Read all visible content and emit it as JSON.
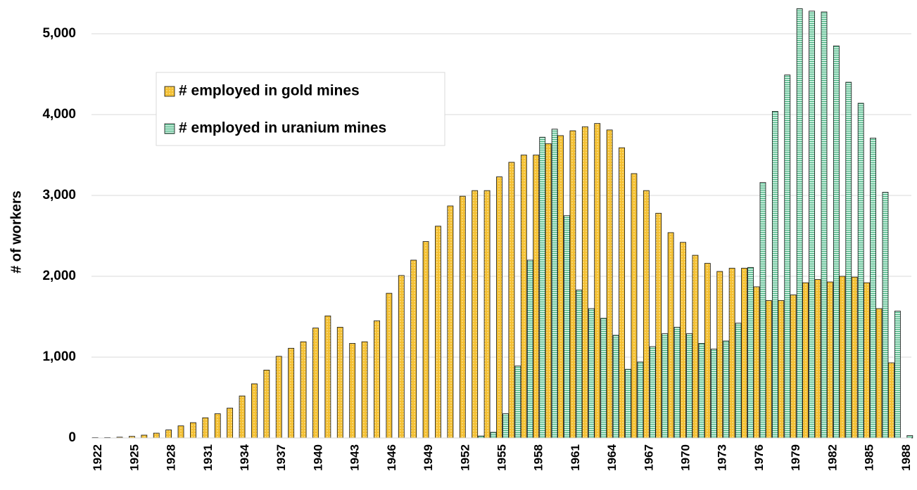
{
  "chart_data": {
    "type": "bar",
    "y_label": "# of workers",
    "categories": [
      "1922",
      null,
      null,
      "1925",
      null,
      null,
      "1928",
      null,
      null,
      "1931",
      null,
      null,
      "1934",
      null,
      null,
      "1937",
      null,
      null,
      "1940",
      null,
      null,
      "1943",
      null,
      null,
      "1946",
      null,
      null,
      "1949",
      null,
      null,
      "1952",
      null,
      null,
      "1955",
      null,
      null,
      "1958",
      null,
      null,
      "1961",
      null,
      null,
      "1964",
      null,
      null,
      "1967",
      null,
      null,
      "1970",
      null,
      null,
      "1973",
      null,
      null,
      "1976",
      null,
      null,
      "1979",
      null,
      null,
      "1982",
      null,
      null,
      "1985",
      null,
      null,
      "1988"
    ],
    "series": [
      {
        "name": "# employed in gold mines",
        "color": "#f4c033",
        "values": [
          5,
          5,
          10,
          20,
          35,
          60,
          100,
          150,
          190,
          250,
          300,
          370,
          520,
          670,
          840,
          1010,
          1110,
          1190,
          1360,
          1510,
          1370,
          1170,
          1190,
          1450,
          1790,
          2010,
          2200,
          2430,
          2620,
          2870,
          2990,
          3060,
          3060,
          3230,
          3410,
          3500,
          3500,
          3640,
          3740,
          3800,
          3850,
          3890,
          3810,
          3590,
          3270,
          3060,
          2780,
          2540,
          2420,
          2260,
          2160,
          2060,
          2100,
          2100,
          1870,
          1700,
          1700,
          1770,
          1920,
          1960,
          1930,
          2000,
          1990,
          1920,
          1600,
          930,
          0
        ]
      },
      {
        "name": "# employed in uranium mines",
        "color": "#8fd9b6",
        "values": [
          0,
          0,
          0,
          0,
          0,
          0,
          0,
          0,
          0,
          0,
          0,
          0,
          0,
          0,
          0,
          0,
          0,
          0,
          0,
          0,
          0,
          0,
          0,
          0,
          0,
          0,
          0,
          0,
          0,
          0,
          0,
          25,
          70,
          300,
          890,
          2200,
          3720,
          3820,
          2750,
          1830,
          1600,
          1480,
          1270,
          850,
          940,
          1130,
          1290,
          1370,
          1290,
          1170,
          1100,
          1200,
          1420,
          2110,
          3160,
          4040,
          4490,
          5310,
          5280,
          5270,
          4850,
          4400,
          4140,
          3710,
          3040,
          1570,
          30
        ]
      }
    ],
    "ylim": [
      0,
      5400
    ],
    "yticks": [
      0,
      {
        "value": 1000,
        "label": "1,000"
      },
      {
        "value": 2000,
        "label": "2,000"
      },
      {
        "value": 3000,
        "label": "3,000"
      },
      {
        "value": 4000,
        "label": "4,000"
      },
      {
        "value": 5000,
        "label": "5,000"
      }
    ],
    "grid": true
  }
}
